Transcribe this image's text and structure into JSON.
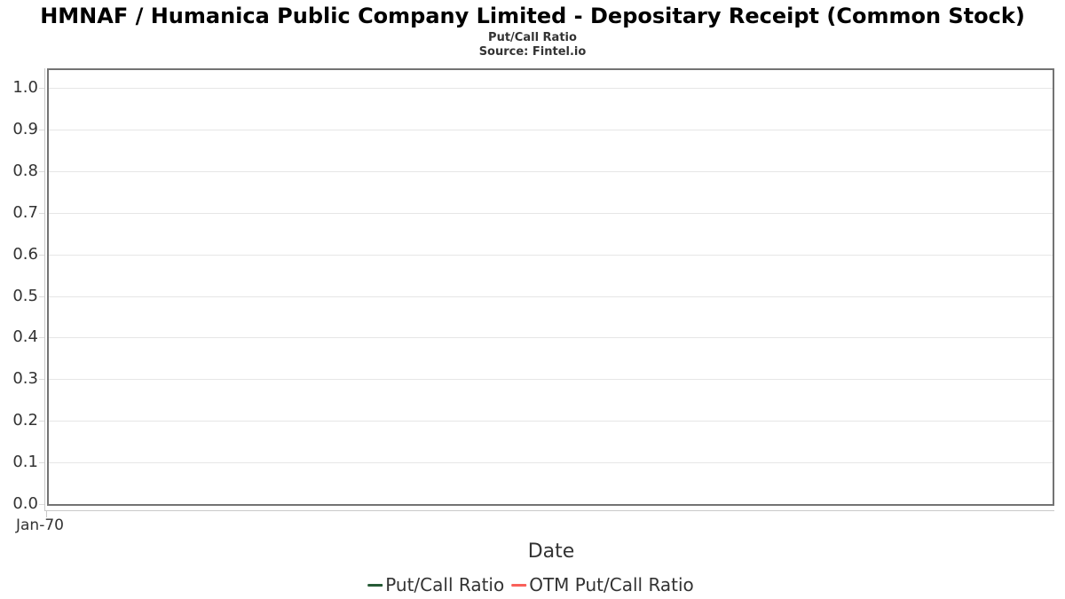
{
  "chart_data": {
    "type": "line",
    "title": "HMNAF / Humanica Public Company Limited - Depositary Receipt (Common Stock)",
    "subtitle": "Put/Call Ratio",
    "source": "Source: Fintel.io",
    "xlabel": "Date",
    "x_tick_labels": [
      "Jan-70"
    ],
    "y_tick_labels": [
      "0.0",
      "0.1",
      "0.2",
      "0.3",
      "0.4",
      "0.5",
      "0.6",
      "0.7",
      "0.8",
      "0.9",
      "1.0"
    ],
    "y_axis_range": [
      0.0,
      1.05
    ],
    "grid": true,
    "legend_position": "bottom",
    "plot_empty": true,
    "series": [
      {
        "name": "Put/Call Ratio",
        "color": "#265b36",
        "x": [],
        "values": []
      },
      {
        "name": "OTM Put/Call Ratio",
        "color": "#f9605a",
        "x": [],
        "values": []
      }
    ],
    "colors": {
      "grid": "#e6e6e6",
      "plot_border": "#737373",
      "axis_line": "#c9c9c9",
      "text": "#333333",
      "title": "#000000"
    }
  }
}
